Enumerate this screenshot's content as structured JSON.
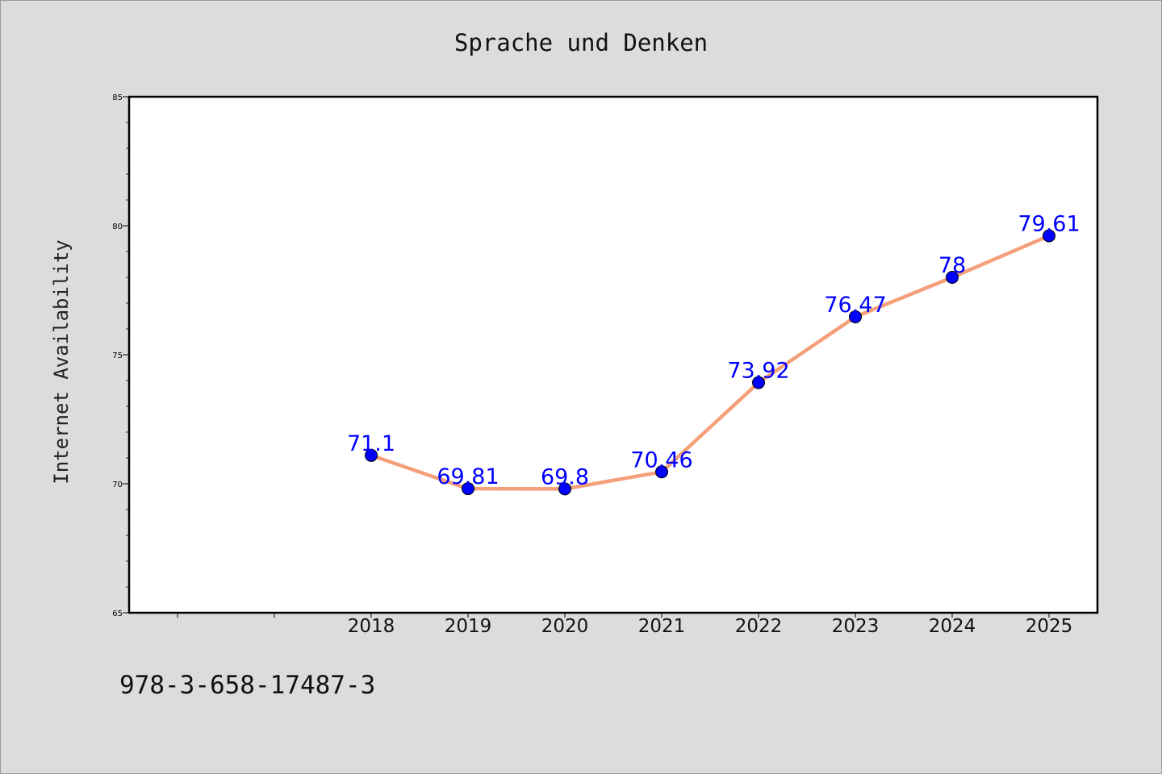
{
  "isbn": "978-3-658-17487-3",
  "chart_data": {
    "type": "line",
    "title": "Sprache und Denken",
    "xlabel": "",
    "ylabel": "Internet Availability",
    "categories": [
      "2018",
      "2019",
      "2020",
      "2021",
      "2022",
      "2023",
      "2024",
      "2025"
    ],
    "x": [
      2018,
      2019,
      2020,
      2021,
      2022,
      2023,
      2024,
      2025
    ],
    "series": [
      {
        "values": [
          71.1,
          69.81,
          69.8,
          70.46,
          73.92,
          76.47,
          78,
          79.61
        ],
        "data_labels": [
          "71.1",
          "69.81",
          "69.8",
          "70.46",
          "73.92",
          "76.47",
          "78",
          "79.61"
        ]
      }
    ],
    "xlim": [
      2015.5,
      2025.5
    ],
    "ylim": [
      65,
      85
    ],
    "yticks_major": [
      "65",
      "70",
      "75",
      "80",
      "85"
    ],
    "grid": false,
    "line_color": "#f4a07a",
    "marker_color": "#0000ff",
    "label_color": "#0000ff"
  }
}
